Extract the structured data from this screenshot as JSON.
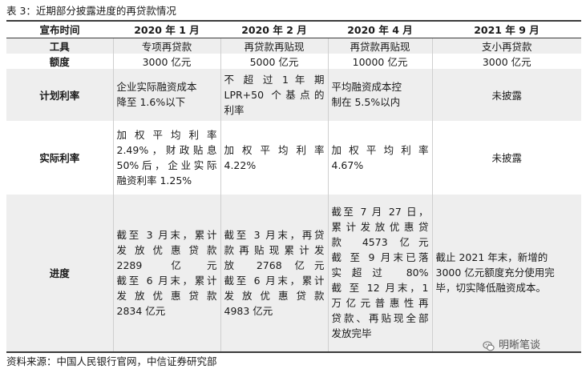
{
  "caption": "表 3：近期部分披露进度的再贷款情况",
  "source": "资料来源：中国人民银行官网，中信证券研究部",
  "watermark": "明晰笔谈",
  "table": {
    "corner": "宣布时间",
    "headers": [
      "2020 年 1 月",
      "2020 年 2 月",
      "2020 年 4 月",
      "2021 年 9 月"
    ],
    "rows": {
      "tool": {
        "label": "工具",
        "cells": [
          "专项再贷款",
          "再贷款再贴现",
          "再贷款再贴现",
          "支小再贷款"
        ]
      },
      "amount": {
        "label": "额度",
        "cells": [
          "3000 亿元",
          "5000 亿元",
          "10000 亿元",
          "3000 亿元"
        ]
      },
      "planned_rate": {
        "label": "计划利率",
        "c1": [
          "企业实际融资成本",
          "降至 1.6%以下"
        ],
        "c2": [
          "不 超 过 1 年 期",
          "LPR+50 个基点的",
          "利率"
        ],
        "c3": [
          "平均融资成本控",
          "制在 5.5%以内"
        ],
        "c4": "未披露"
      },
      "actual_rate": {
        "label": "实际利率",
        "c1": [
          "加 权 平 均 利 率",
          "2.49%，财政贴息",
          "50%后，企业实际",
          "融资利率 1.25%"
        ],
        "c2": [
          "加 权 平 均 利 率",
          "4.22%"
        ],
        "c3": [
          "加 权 平 均 利 率",
          "4.67%"
        ],
        "c4": "未披露"
      },
      "progress": {
        "label": "进度",
        "c1": [
          "截至 3 月末，累计",
          "发 放 优 惠 贷 款",
          "2289 亿元",
          "截至 6 月末，累计",
          "发 放 优 惠 贷 款",
          "2834 亿元"
        ],
        "c2": [
          "截至 3 月末，再贷",
          "款再贴现累计发",
          "放 2768 亿元",
          "截至 6 月末，累计",
          "发 放 优 惠 贷 款",
          "4983 亿元"
        ],
        "c3": [
          "截至 7 月 27 日，",
          "累计发放优惠贷",
          "款 4573 亿元",
          "截 至 9 月末已落",
          "实超过 80%",
          "截 至 12 月末，1",
          "万亿元普惠性再",
          "贷款、再贴现全部",
          "发放完毕"
        ],
        "c4": [
          "截止 2021 年末，新增的",
          "3000 亿元额度充分使用完",
          "毕，切实降低融资成本。"
        ]
      }
    }
  }
}
